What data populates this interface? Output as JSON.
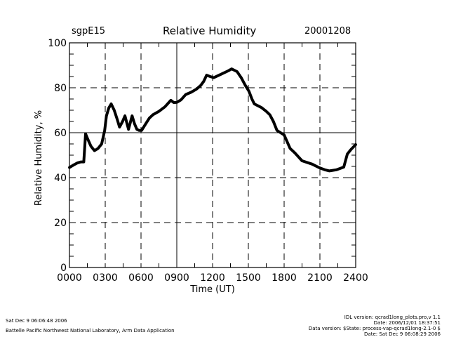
{
  "header": {
    "site": "sgpE15",
    "title": "Relative Humidity",
    "date": "20001208"
  },
  "footer": {
    "left": [
      "Sat Dec  9 06:06:48 2006",
      "Battelle Pacific Northwest National Laboratory, Arm Data Application"
    ],
    "right": [
      "IDL version: qcrad1long_plots.pro,v 1.1",
      "Date: 2006/12/01 18:37:51",
      "Data version: $State: process-vap-qcrad1long-2.1-0 $",
      "Date: Sat Dec  9 06:08:29 2006"
    ]
  },
  "colors": {
    "line": "#000000",
    "background": "#ffffff"
  },
  "chart_data": {
    "type": "line",
    "title": "Relative Humidity",
    "xlabel": "Time (UT)",
    "ylabel": "Relative Humidity, %",
    "xlim": [
      0,
      24
    ],
    "ylim": [
      0,
      100
    ],
    "xticks": [
      0,
      3,
      6,
      9,
      12,
      15,
      18,
      21,
      24
    ],
    "xtick_labels": [
      "0000",
      "0300",
      "0600",
      "0900",
      "1200",
      "1500",
      "1800",
      "2100",
      "2400"
    ],
    "yticks": [
      0,
      20,
      40,
      60,
      80,
      100
    ],
    "ytick_labels": [
      "0",
      "20",
      "40",
      "60",
      "80",
      "100"
    ],
    "grid": "dashed",
    "series": [
      {
        "name": "Relative Humidity",
        "x": [
          0.0,
          0.3,
          0.65,
          0.95,
          1.2,
          1.35,
          1.55,
          1.8,
          2.1,
          2.4,
          2.7,
          2.95,
          3.1,
          3.3,
          3.5,
          3.75,
          4.0,
          4.2,
          4.45,
          4.65,
          4.95,
          5.25,
          5.45,
          5.65,
          5.85,
          6.05,
          6.4,
          6.7,
          7.0,
          7.5,
          8.0,
          8.5,
          8.75,
          9.0,
          9.35,
          9.75,
          10.2,
          10.65,
          11.0,
          11.25,
          11.5,
          11.8,
          12.1,
          12.5,
          12.9,
          13.3,
          13.6,
          14.05,
          14.4,
          14.75,
          15.05,
          15.3,
          15.5,
          16.1,
          16.5,
          16.8,
          17.1,
          17.4,
          18.0,
          18.5,
          18.9,
          19.5,
          20.35,
          20.95,
          21.4,
          21.8,
          22.4,
          23.0,
          23.3,
          23.6,
          24.0
        ],
        "y": [
          44.5,
          45.5,
          46.5,
          47,
          47,
          59.5,
          57,
          54,
          52,
          53,
          55,
          61,
          67.5,
          71,
          72.8,
          70,
          66,
          62.5,
          65,
          67.5,
          61.5,
          67.5,
          64,
          61.5,
          61,
          61,
          64,
          66.5,
          68,
          69.5,
          71.5,
          74.4,
          73.4,
          73.5,
          74.6,
          77,
          78,
          79.4,
          81,
          82.8,
          85.6,
          85,
          84.5,
          85.5,
          86.5,
          87.5,
          88.4,
          87.2,
          84.5,
          81,
          78.4,
          75,
          72.8,
          71.2,
          69.5,
          68,
          65,
          61,
          59,
          53,
          51,
          47.5,
          46,
          44.4,
          43.5,
          43,
          43.5,
          44.7,
          50.5,
          52.5,
          54.7
        ]
      }
    ]
  }
}
